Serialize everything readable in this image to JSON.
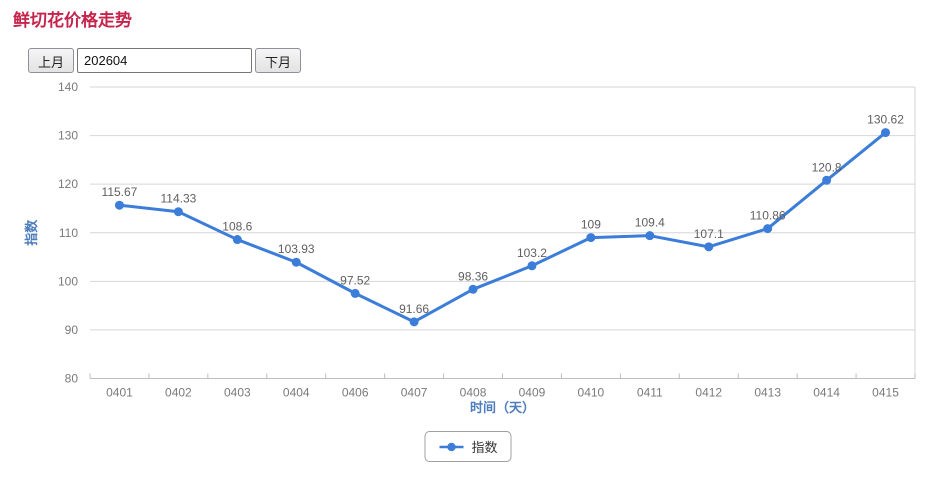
{
  "page": {
    "title": "鲜切花价格走势"
  },
  "controls": {
    "prev_label": "上月",
    "next_label": "下月",
    "period_value": "202604"
  },
  "colors": {
    "accent_blue": "#3b7dd8",
    "title_red": "#c5244c",
    "grid_line": "#d6d6d6",
    "axis_line": "#bdbdbd",
    "tick_text": "#7a7a7a",
    "data_label_text": "#5f5f5f",
    "axis_title_text": "#4e7dbb",
    "legend_border": "#a0a0a0"
  },
  "chart_data": {
    "type": "line",
    "title": "鲜切花价格走势",
    "categories": [
      "0401",
      "0402",
      "0403",
      "0404",
      "0406",
      "0407",
      "0408",
      "0409",
      "0410",
      "0411",
      "0412",
      "0413",
      "0414",
      "0415"
    ],
    "series": [
      {
        "name": "指数",
        "values": [
          115.67,
          114.33,
          108.6,
          103.93,
          97.52,
          91.66,
          98.36,
          103.2,
          109,
          109.4,
          107.1,
          110.86,
          120.8,
          130.62
        ]
      }
    ],
    "xlabel": "时间（天）",
    "ylabel": "指数",
    "ylim": [
      80,
      140
    ],
    "ytick_step": 10,
    "grid": true,
    "legend_position": "bottom",
    "legend": [
      "指数"
    ]
  }
}
